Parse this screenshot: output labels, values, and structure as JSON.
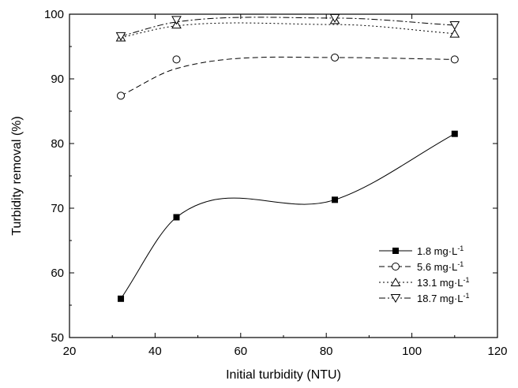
{
  "chart_data": {
    "type": "scatter",
    "xlabel": "Initial turbidity (NTU)",
    "ylabel": "Turbidity removal (%)",
    "xlim": [
      20,
      120
    ],
    "ylim": [
      50,
      100
    ],
    "xticks": [
      20,
      40,
      60,
      80,
      100,
      120
    ],
    "yticks": [
      50,
      60,
      70,
      80,
      90,
      100
    ],
    "x": [
      32,
      45,
      82,
      110
    ],
    "grid": false,
    "legend_position": "bottom-right",
    "series": [
      {
        "legend_value": "1.8",
        "legend_unit": "mg·L",
        "legend_sup": "-1",
        "marker": "filled-square",
        "line_style": "solid",
        "y": [
          56.0,
          68.6,
          71.3,
          81.5
        ],
        "fit_y": [
          56.0,
          68.6,
          71.3,
          81.5
        ]
      },
      {
        "legend_value": "5.6",
        "legend_unit": "mg·L",
        "legend_sup": "-1",
        "marker": "open-circle",
        "line_style": "dashed",
        "y": [
          87.4,
          93.0,
          93.3,
          93.0
        ],
        "fit_y": [
          87.4,
          91.6,
          93.3,
          93.0
        ]
      },
      {
        "legend_value": "13.1",
        "legend_unit": "mg·L",
        "legend_sup": "-1",
        "marker": "open-triangle-up",
        "line_style": "dotted",
        "y": [
          96.4,
          98.4,
          99.1,
          97.0
        ],
        "fit_y": [
          96.4,
          98.2,
          98.4,
          97.0
        ]
      },
      {
        "legend_value": "18.7",
        "legend_unit": "mg·L",
        "legend_sup": "-1",
        "marker": "open-triangle-down",
        "line_style": "dash-dot",
        "y": [
          96.6,
          99.1,
          99.4,
          98.3
        ],
        "fit_y": [
          96.6,
          98.8,
          99.4,
          98.3
        ]
      }
    ]
  }
}
